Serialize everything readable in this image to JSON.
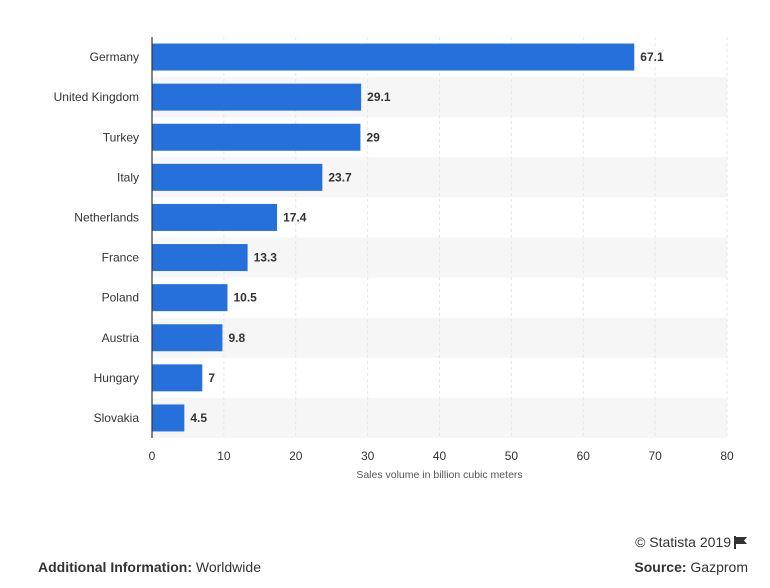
{
  "colors": {
    "bar": "#2670dc",
    "band": "#f6f6f6",
    "grid": "#e6e6e6",
    "axis": "#333333"
  },
  "chart_data": {
    "type": "bar",
    "orientation": "horizontal",
    "categories": [
      "Germany",
      "United Kingdom",
      "Turkey",
      "Italy",
      "Netherlands",
      "France",
      "Poland",
      "Austria",
      "Hungary",
      "Slovakia"
    ],
    "values": [
      67.1,
      29.1,
      29,
      23.7,
      17.4,
      13.3,
      10.5,
      9.8,
      7,
      4.5
    ],
    "value_labels": [
      "67.1",
      "29.1",
      "29",
      "23.7",
      "17.4",
      "13.3",
      "10.5",
      "9.8",
      "7",
      "4.5"
    ],
    "xlim": [
      0,
      80
    ],
    "xticks": [
      0,
      10,
      20,
      30,
      40,
      50,
      60,
      70,
      80
    ],
    "xlabel": "Sales volume in billion cubic meters",
    "ylabel": "",
    "title": "",
    "grid": true
  },
  "footer": {
    "copyright": "© Statista 2019",
    "additional_label": "Additional Information:",
    "additional_value": "Worldwide",
    "source_label": "Source:",
    "source_value": "Gazprom"
  }
}
